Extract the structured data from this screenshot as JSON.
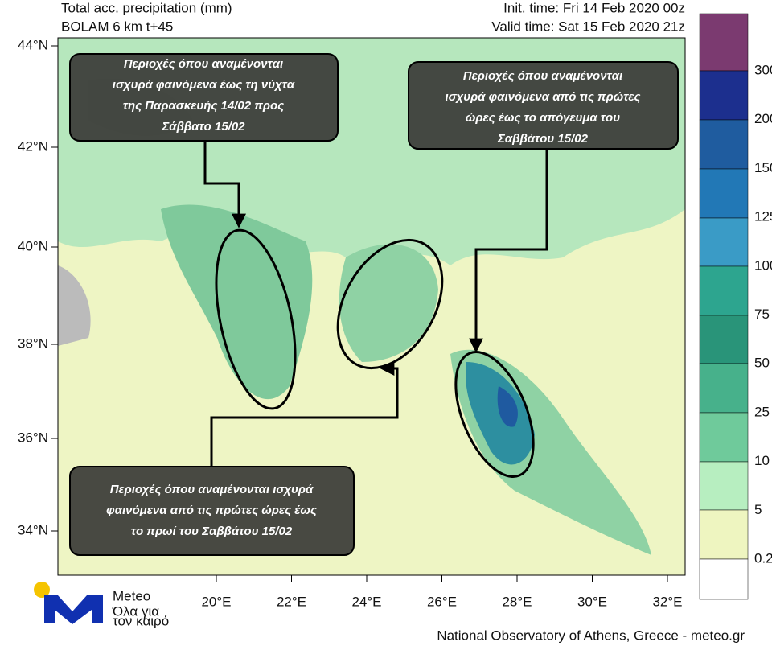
{
  "header": {
    "title": "Total acc. precipitation (mm)",
    "model": "BOLAM 6 km t+45",
    "init_time": "Init. time: Fri 14 Feb 2020 00z",
    "valid_time": "Valid time: Sat 15 Feb 2020 21z"
  },
  "map": {
    "lat_labels": [
      "44°N",
      "42°N",
      "40°N",
      "38°N",
      "36°N",
      "34°N"
    ],
    "lon_labels": [
      "20°E",
      "22°E",
      "24°E",
      "26°E",
      "28°E",
      "30°E",
      "32°E"
    ]
  },
  "colorbar": {
    "labels": [
      "300",
      "200",
      "150",
      "125",
      "100",
      "75",
      "50",
      "25",
      "10",
      "5",
      "0.2"
    ]
  },
  "annotations": [
    {
      "lines": [
        "Περιοχές όπου αναμένονται",
        "ισχυρά φαινόμενα έως τη νύχτα",
        "της Παρασκευής 14/02 προς",
        "Σάββατο 15/02"
      ]
    },
    {
      "lines": [
        "Περιοχές όπου αναμένονται",
        "ισχυρά φαινόμενα  από τις πρώτες",
        "ώρες έως το απόγευμα του",
        "Σαββάτου 15/02"
      ]
    },
    {
      "lines": [
        "Περιοχές όπου αναμένονται ισχυρά",
        "φαινόμενα από τις πρώτες ώρες έως",
        "το πρωί του Σαββάτου 15/02"
      ]
    }
  ],
  "logo": {
    "name": "Meteo",
    "tagline": [
      "Όλα για",
      "τον καιρό"
    ]
  },
  "footer": "National Observatory of Athens, Greece - meteo.gr"
}
